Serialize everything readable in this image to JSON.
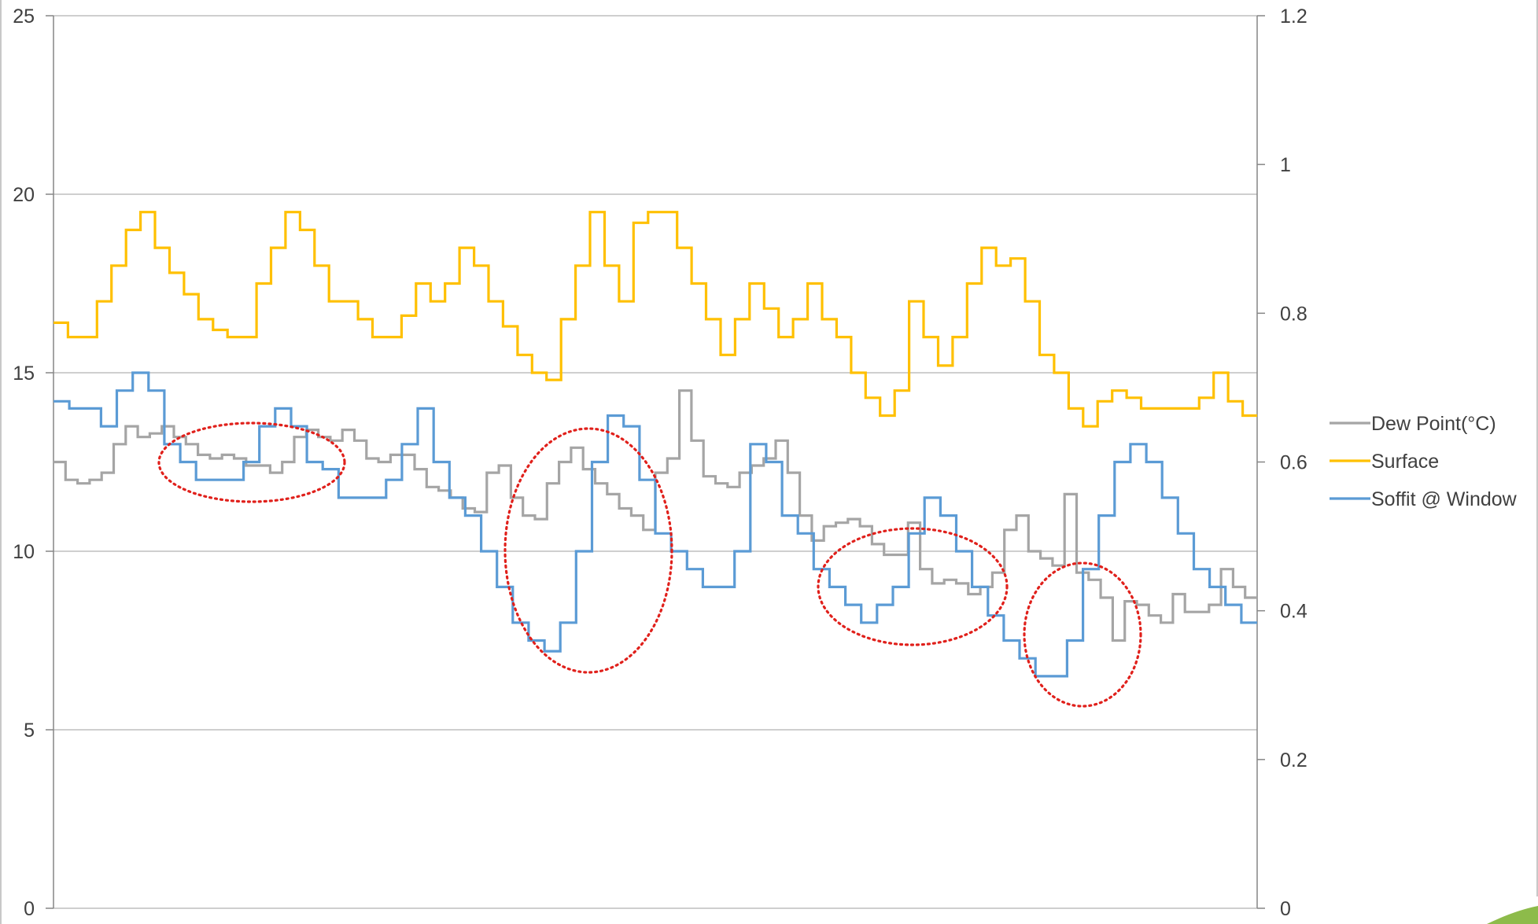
{
  "chart_data": {
    "type": "line",
    "title": "",
    "xlabel": "",
    "ylabel": "",
    "y_left": {
      "ylim": [
        0,
        25
      ],
      "ticks": [
        "0",
        "5",
        "10",
        "15",
        "20",
        "25"
      ]
    },
    "y_right": {
      "ylim": [
        0,
        1.2
      ],
      "ticks": [
        "0",
        "0.2",
        "0.4",
        "0.6",
        "0.8",
        "1",
        "1.2"
      ]
    },
    "grid": "horizontal",
    "legend_position": "right",
    "n_samples": 100,
    "series": [
      {
        "name": "Dew Point(°C)",
        "color": "#a5a5a5",
        "axis": "left",
        "values": [
          12.5,
          12.0,
          11.9,
          12.0,
          12.2,
          13.0,
          13.5,
          13.2,
          13.3,
          13.5,
          13.2,
          13.0,
          12.7,
          12.6,
          12.7,
          12.6,
          12.4,
          12.4,
          12.2,
          12.5,
          13.2,
          13.4,
          13.2,
          13.1,
          13.4,
          13.1,
          12.6,
          12.5,
          12.7,
          12.7,
          12.3,
          11.8,
          11.7,
          11.5,
          11.2,
          11.1,
          12.2,
          12.4,
          11.5,
          11.0,
          10.9,
          11.9,
          12.5,
          12.9,
          12.3,
          11.9,
          11.6,
          11.2,
          11.0,
          10.6,
          12.2,
          12.6,
          14.5,
          13.1,
          12.1,
          11.9,
          11.8,
          12.2,
          12.4,
          12.6,
          13.1,
          12.2,
          11.0,
          10.3,
          10.7,
          10.8,
          10.9,
          10.7,
          10.2,
          9.9,
          9.9,
          10.8,
          9.5,
          9.1,
          9.2,
          9.1,
          8.8,
          9.0,
          9.4,
          10.6,
          11.0,
          10.0,
          9.8,
          9.6,
          11.6,
          9.4,
          9.2,
          8.7,
          7.5,
          8.6,
          8.5,
          8.2,
          8.0,
          8.8,
          8.3,
          8.3,
          8.5,
          9.5,
          9.0,
          8.7
        ]
      },
      {
        "name": "Surface",
        "color": "#ffc000",
        "axis": "left",
        "values": [
          16.4,
          16.0,
          16.0,
          17.0,
          18.0,
          19.0,
          19.5,
          18.5,
          17.8,
          17.2,
          16.5,
          16.2,
          16.0,
          16.0,
          17.5,
          18.5,
          19.5,
          19.0,
          18.0,
          17.0,
          17.0,
          16.5,
          16.0,
          16.0,
          16.6,
          17.5,
          17.0,
          17.5,
          18.5,
          18.0,
          17.0,
          16.3,
          15.5,
          15.0,
          14.8,
          16.5,
          18.0,
          19.5,
          18.0,
          17.0,
          19.2,
          19.5,
          19.5,
          18.5,
          17.5,
          16.5,
          15.5,
          16.5,
          17.5,
          16.8,
          16.0,
          16.5,
          17.5,
          16.5,
          16.0,
          15.0,
          14.3,
          13.8,
          14.5,
          17.0,
          16.0,
          15.2,
          16.0,
          17.5,
          18.5,
          18.0,
          18.2,
          17.0,
          15.5,
          15.0,
          14.0,
          13.5,
          14.2,
          14.5,
          14.3,
          14.0,
          14.0,
          14.0,
          14.0,
          14.3,
          15.0,
          14.2,
          13.8
        ]
      },
      {
        "name": "Soffit @ Window",
        "color": "#5b9bd5",
        "axis": "left",
        "values": [
          14.2,
          14.0,
          14.0,
          13.5,
          14.5,
          15.0,
          14.5,
          13.0,
          12.5,
          12.0,
          12.0,
          12.0,
          12.5,
          13.5,
          14.0,
          13.5,
          12.5,
          12.3,
          11.5,
          11.5,
          11.5,
          12.0,
          13.0,
          14.0,
          12.5,
          11.5,
          11.0,
          10.0,
          9.0,
          8.0,
          7.5,
          7.2,
          8.0,
          10.0,
          12.5,
          13.8,
          13.5,
          12.0,
          10.5,
          10.0,
          9.5,
          9.0,
          9.0,
          10.0,
          13.0,
          12.5,
          11.0,
          10.5,
          9.5,
          9.0,
          8.5,
          8.0,
          8.5,
          9.0,
          10.5,
          11.5,
          11.0,
          10.0,
          9.0,
          8.2,
          7.5,
          7.0,
          6.5,
          6.5,
          7.5,
          9.5,
          11.0,
          12.5,
          13.0,
          12.5,
          11.5,
          10.5,
          9.5,
          9.0,
          8.5,
          8.0
        ]
      }
    ],
    "annotations": [
      "dotted ellipse",
      "dotted ellipse",
      "dotted ellipse",
      "dotted ellipse"
    ]
  }
}
